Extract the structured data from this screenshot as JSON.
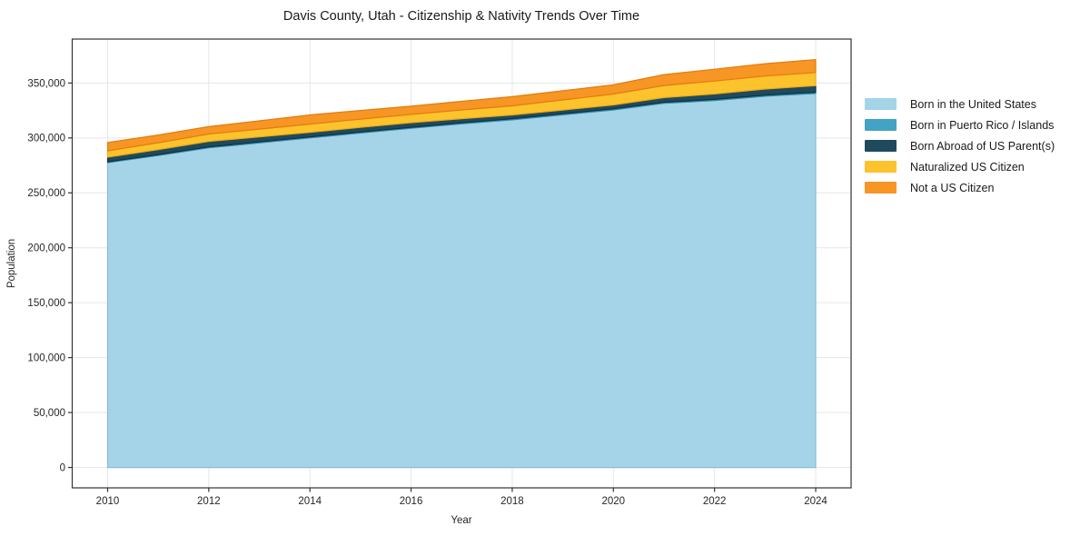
{
  "chart_data": {
    "type": "area",
    "stacked": true,
    "title": "Davis County, Utah - Citizenship & Nativity Trends Over Time",
    "xlabel": "Year",
    "ylabel": "Population",
    "grid": true,
    "legend_position": "right",
    "grid_color": "#e6e6e6",
    "spine_color": "#333333",
    "text_color": "#262626",
    "xlim": [
      2009.3,
      2024.7
    ],
    "ylim": [
      -18565,
      390000
    ],
    "x": [
      2010,
      2011,
      2012,
      2013,
      2014,
      2015,
      2016,
      2017,
      2018,
      2019,
      2020,
      2021,
      2022,
      2023,
      2024
    ],
    "series": [
      {
        "id": "born-us",
        "name": "Born in the United States",
        "color": "#A5D3E8",
        "edge": "#86BED9",
        "values": [
          277500,
          284000,
          291000,
          295500,
          300000,
          304500,
          308800,
          312800,
          316500,
          321000,
          325500,
          331500,
          334000,
          338000,
          340500
        ]
      },
      {
        "id": "puerto-rico-islands",
        "name": "Born in Puerto Rico / Islands",
        "color": "#42A3C5",
        "edge": "#2F8BAB",
        "values": [
          800,
          800,
          850,
          850,
          900,
          900,
          900,
          950,
          950,
          1000,
          1000,
          1000,
          1050,
          1050,
          1100
        ]
      },
      {
        "id": "born-abroad",
        "name": "Born Abroad of US Parent(s)",
        "color": "#1F4A5E",
        "edge": "#13303E",
        "values": [
          4200,
          4600,
          5000,
          4600,
          4200,
          4200,
          4200,
          3800,
          3500,
          3400,
          3500,
          4200,
          5000,
          5500,
          6000
        ]
      },
      {
        "id": "naturalized",
        "name": "Naturalized US Citizen",
        "color": "#FCC32D",
        "edge": "#EDAC14",
        "values": [
          5800,
          6200,
          6700,
          7100,
          7500,
          7500,
          7500,
          7900,
          8300,
          9200,
          10000,
          11000,
          11700,
          11800,
          12000
        ]
      },
      {
        "id": "not-citizen",
        "name": "Not a US Citizen",
        "color": "#F79624",
        "edge": "#E27D0E",
        "values": [
          7500,
          7100,
          6700,
          7500,
          8300,
          7900,
          7500,
          7900,
          8300,
          8300,
          8300,
          10000,
          10800,
          11200,
          11700
        ]
      }
    ],
    "xticks": {
      "values": [
        2010,
        2012,
        2014,
        2016,
        2018,
        2020,
        2022,
        2024
      ],
      "labels": [
        "2010",
        "2012",
        "2014",
        "2016",
        "2018",
        "2020",
        "2022",
        "2024"
      ]
    },
    "yticks": {
      "values": [
        0,
        50000,
        100000,
        150000,
        200000,
        250000,
        300000,
        350000
      ],
      "labels": [
        "0",
        "50,000",
        "100,000",
        "150,000",
        "200,000",
        "250,000",
        "300,000",
        "350,000"
      ]
    }
  }
}
